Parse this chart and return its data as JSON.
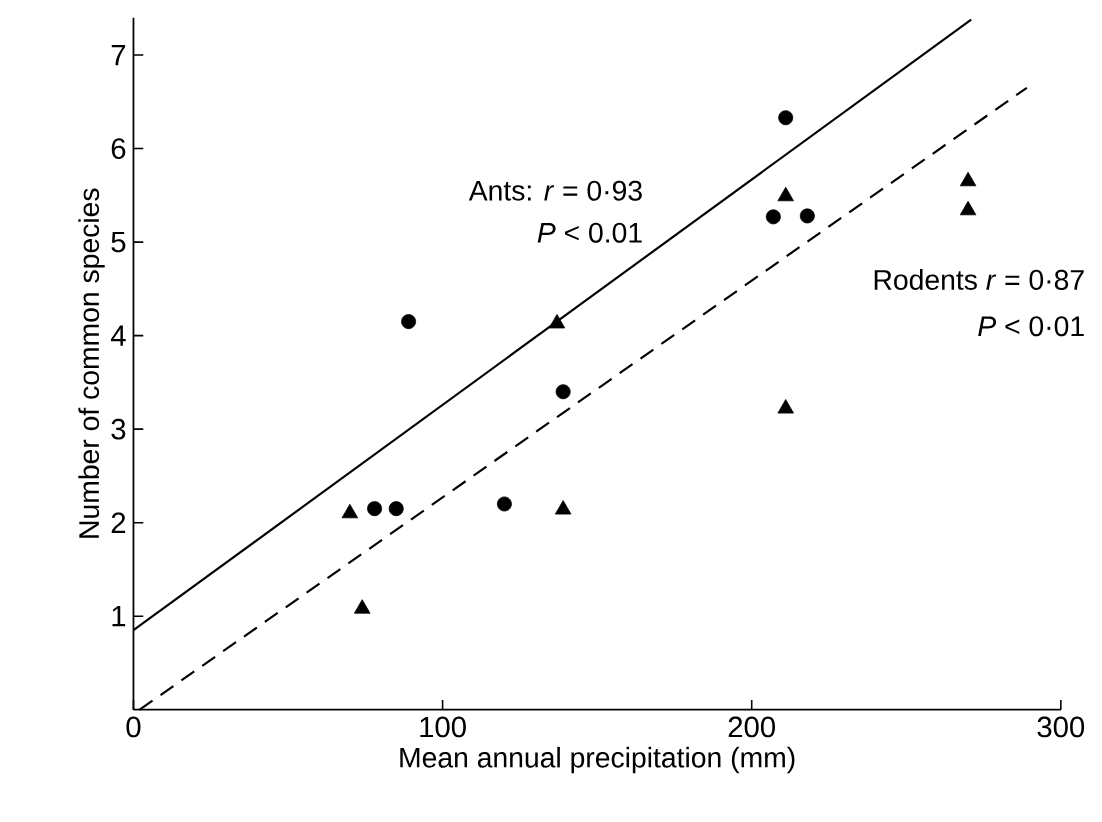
{
  "chart_data": {
    "type": "scatter",
    "xlabel": "Mean annual precipitation (mm)",
    "ylabel": "Number of common species",
    "xlim": [
      0,
      300
    ],
    "ylim": [
      0,
      7.4
    ],
    "xticks": [
      0,
      100,
      200,
      300
    ],
    "yticks": [
      1,
      2,
      3,
      4,
      5,
      6,
      7
    ],
    "annotations": [
      "Ants: *r* = 0·93",
      "*P* < 0.01",
      "Rodents *r* = 0·87",
      "*P* < 0·01"
    ],
    "series": [
      {
        "marker": "circle",
        "color": "#000000",
        "x": [
          89,
          78,
          85,
          120,
          139,
          211,
          207,
          218
        ],
        "values": [
          4.15,
          2.15,
          2.15,
          2.2,
          3.4,
          6.33,
          5.27,
          5.28
        ]
      },
      {
        "marker": "triangle",
        "color": "#000000",
        "x": [
          70,
          74,
          137,
          139,
          211,
          211,
          270,
          270
        ],
        "values": [
          2.1,
          1.08,
          4.13,
          2.14,
          5.49,
          3.22,
          5.65,
          5.34
        ]
      },
      {
        "type": "line",
        "line_style": "solid",
        "marker": "none",
        "color": "#000000",
        "x": [
          0,
          271
        ],
        "values": [
          0.85,
          7.38
        ]
      },
      {
        "type": "line",
        "line_style": "dashed",
        "marker": "none",
        "color": "#000000",
        "x": [
          2,
          289
        ],
        "values": [
          0,
          6.65
        ]
      }
    ]
  }
}
